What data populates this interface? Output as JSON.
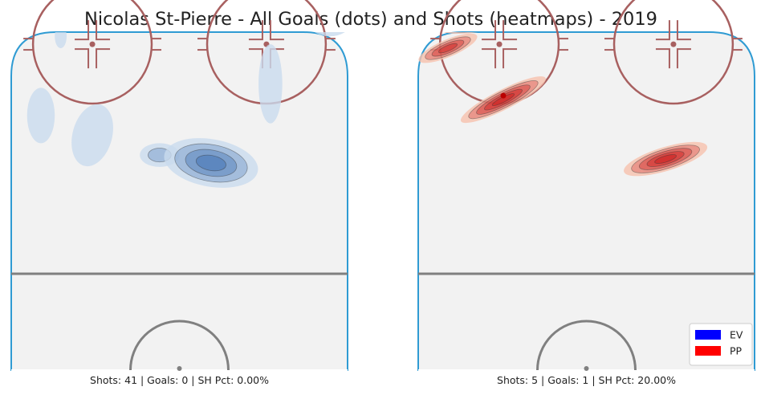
{
  "chart_data": {
    "type": "heatmap",
    "title": "Nicolas St-Pierre - All Goals (dots) and Shots (heatmaps) - 2019",
    "panels": [
      {
        "situation": "EV",
        "color": "#3a6db0",
        "shots": 41,
        "goals": 0,
        "sh_pct": "0.00%",
        "caption": "Shots: 41 | Goals: 0 | SH Pct: 0.00%",
        "goal_dots": [],
        "density_regions": [
          {
            "x": -30,
            "y": 60,
            "rx": 1.5,
            "ry": 3,
            "rot": 0,
            "levels": 1
          },
          {
            "x": 38,
            "y": 63,
            "rx": 5,
            "ry": 3,
            "rot": 0,
            "levels": 1
          },
          {
            "x": -8,
            "y": 64,
            "rx": 7,
            "ry": 1.6,
            "rot": -5,
            "levels": 1
          },
          {
            "x": -35,
            "y": 40,
            "rx": 3.5,
            "ry": 7,
            "rot": 0,
            "levels": 1
          },
          {
            "x": -22,
            "y": 35,
            "rx": 5,
            "ry": 8,
            "rot": 15,
            "levels": 1
          },
          {
            "x": 23,
            "y": 48,
            "rx": 3,
            "ry": 10,
            "rot": 0,
            "levels": 1
          },
          {
            "x": -5,
            "y": 30,
            "rx": 5,
            "ry": 3,
            "rot": 0,
            "levels": 2
          },
          {
            "x": 8,
            "y": 28,
            "rx": 12,
            "ry": 6,
            "rot": 10,
            "levels": 4
          }
        ]
      },
      {
        "situation": "PP",
        "color": "#cc2222",
        "shots": 5,
        "goals": 1,
        "sh_pct": "20.00%",
        "caption": "Shots: 5 | Goals: 1 | SH Pct: 20.00%",
        "goal_dots": [
          {
            "x": -21,
            "y": 45
          }
        ],
        "density_regions": [
          {
            "x": -28,
            "y": 63,
            "rx": 9,
            "ry": 2,
            "rot": -8,
            "levels": 5
          },
          {
            "x": -35,
            "y": 57,
            "rx": 8,
            "ry": 2.2,
            "rot": -23,
            "levels": 4
          },
          {
            "x": -21,
            "y": 44,
            "rx": 12,
            "ry": 2.5,
            "rot": -27,
            "levels": 5
          },
          {
            "x": 20,
            "y": 29,
            "rx": 11,
            "ry": 3,
            "rot": -17,
            "levels": 5
          }
        ]
      }
    ],
    "legend": [
      {
        "label": "EV",
        "color": "#0000ff"
      },
      {
        "label": "PP",
        "color": "#ff0000"
      }
    ],
    "legend_position": "bottom-right"
  }
}
